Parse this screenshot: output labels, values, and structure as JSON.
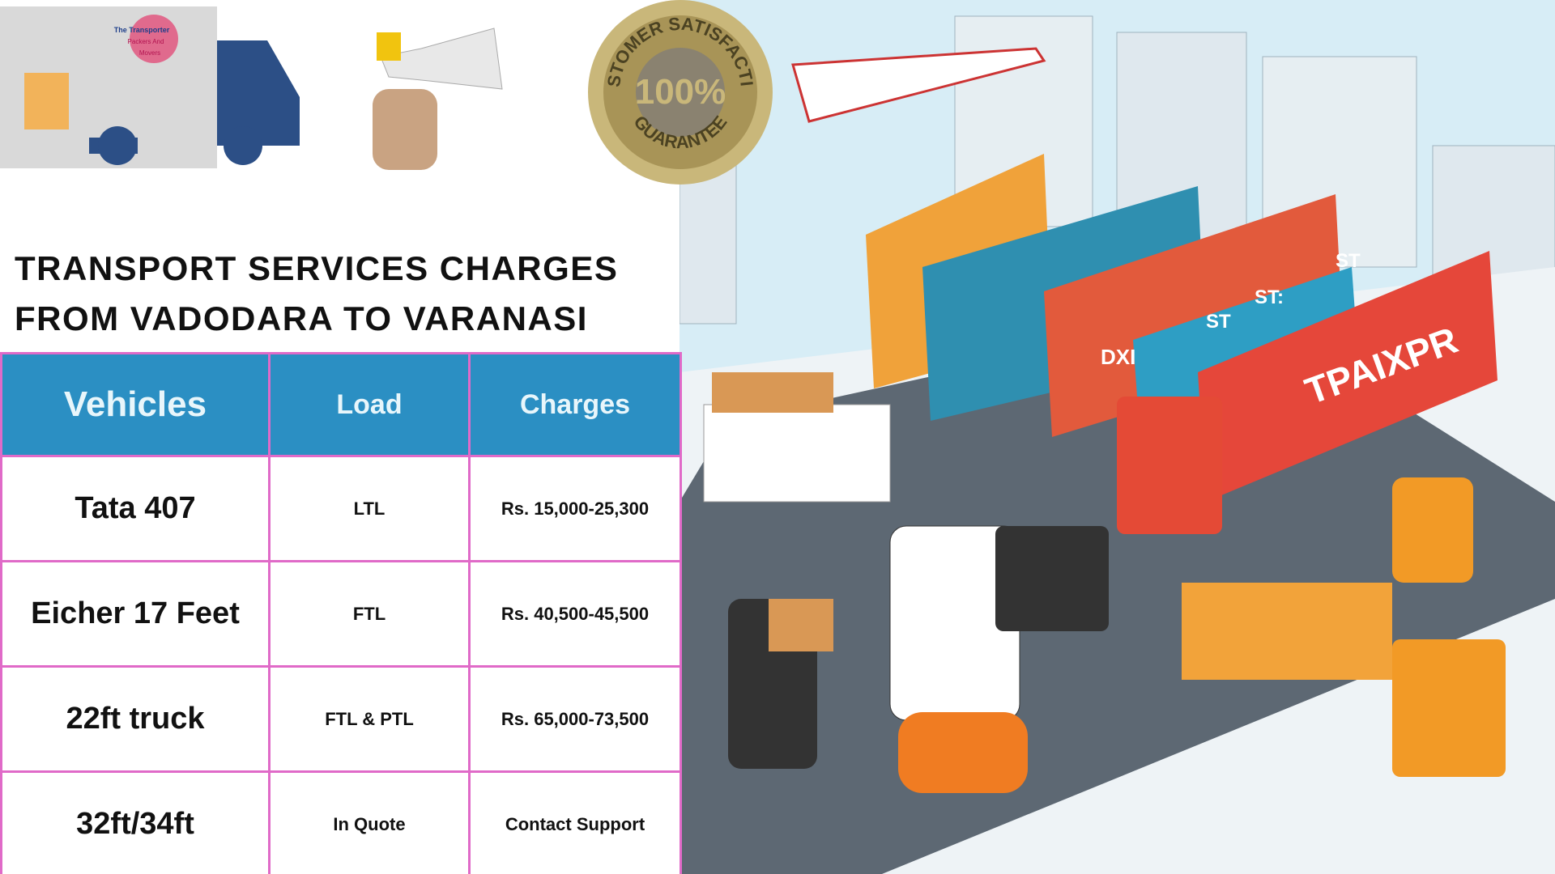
{
  "logo": {
    "lines": [
      "The Transporter",
      "Packers And",
      "Movers"
    ]
  },
  "seal": {
    "top": "CUSTOMER SATISFACTION",
    "center": "100%",
    "bottom": "GUARANTEE"
  },
  "title": [
    "TRANSPORT SERVICES CHARGES",
    "FROM VADODARA TO VARANASI"
  ],
  "table": {
    "headers": [
      "Vehicles",
      "Load",
      "Charges"
    ],
    "rows": [
      [
        "Tata 407",
        "LTL",
        "Rs. 15,000-25,300"
      ],
      [
        "Eicher 17 Feet",
        "FTL",
        "Rs. 40,500-45,500"
      ],
      [
        "22ft truck",
        "FTL & PTL",
        "Rs. 65,000-73,500"
      ],
      [
        "32ft/34ft",
        "In Quote",
        "Contact Support"
      ]
    ]
  },
  "illustration": {
    "container_text": "TPAIXPR",
    "container_codes": [
      "DXI",
      "ST",
      "ST:",
      "ST"
    ]
  }
}
